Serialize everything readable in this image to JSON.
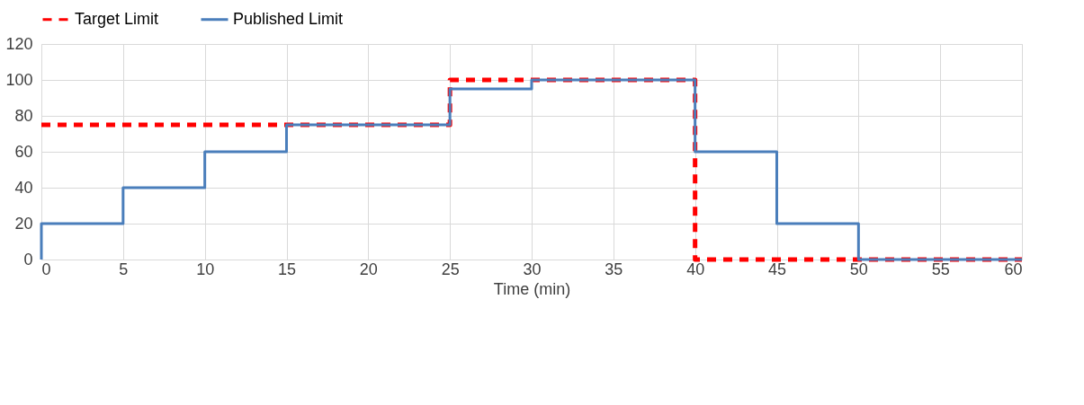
{
  "chart_data": {
    "type": "step",
    "xlabel": "Time (min)",
    "xlim": [
      0,
      60
    ],
    "xticks": [
      0,
      5,
      10,
      15,
      20,
      25,
      30,
      35,
      40,
      45,
      50,
      55,
      60
    ],
    "ylim": [
      0,
      120
    ],
    "yticks": [
      0,
      20,
      40,
      60,
      80,
      100,
      120
    ],
    "grid": true,
    "legend": "top",
    "series": [
      {
        "name": "Target Limit",
        "color": "#ff0000",
        "line_style": "dashed",
        "x": [
          0,
          25,
          40,
          60
        ],
        "values": [
          75,
          100,
          0,
          0
        ]
      },
      {
        "name": "Published Limit",
        "color": "#4a7ebb",
        "line_style": "solid",
        "x": [
          0,
          0,
          5,
          10,
          15,
          25,
          30,
          40,
          45,
          50,
          60
        ],
        "values": [
          0,
          20,
          40,
          60,
          75,
          95,
          100,
          60,
          20,
          0,
          0
        ]
      }
    ]
  }
}
